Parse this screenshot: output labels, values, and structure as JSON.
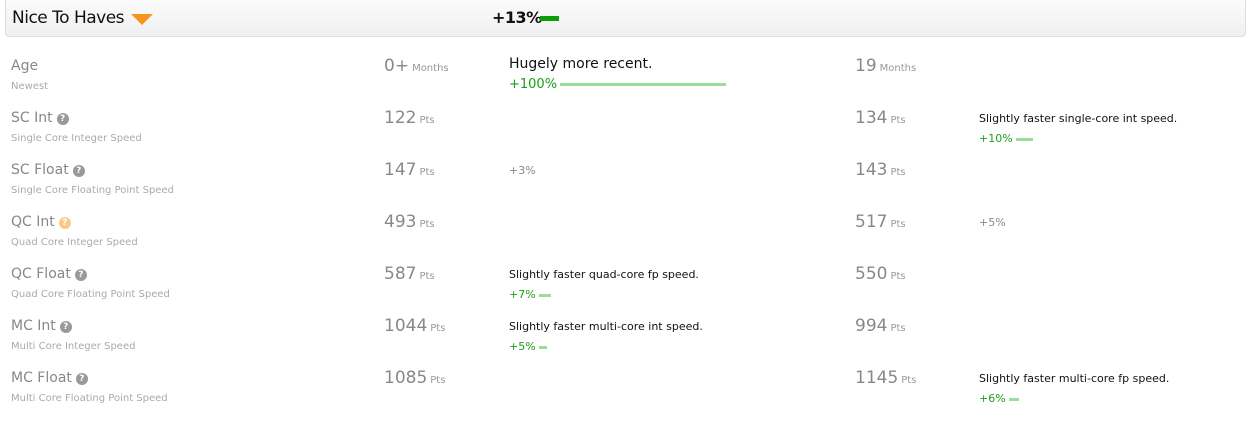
{
  "header": {
    "title": "Nice To Haves",
    "icon": "triangle-down-icon",
    "percent": "+13%",
    "accent": "#f7941d",
    "bar_color": "#0a9e0a"
  },
  "rows": [
    {
      "label": "Age",
      "sub": "Newest",
      "help": false,
      "left": {
        "value": "0+",
        "unit": "Months"
      },
      "right": {
        "value": "19",
        "unit": "Months"
      },
      "comment_side": "left",
      "comment": "Hugely more recent.",
      "delta": "+100%",
      "delta_fraction": 1.0
    },
    {
      "label": "SC Int",
      "sub": "Single Core Integer Speed",
      "help": true,
      "left": {
        "value": "122",
        "unit": "Pts"
      },
      "right": {
        "value": "134",
        "unit": "Pts"
      },
      "comment_side": "right",
      "comment": "Slightly faster single-core int speed.",
      "delta": "+10%",
      "delta_fraction": 0.1
    },
    {
      "label": "SC Float",
      "sub": "Single Core Floating Point Speed",
      "help": true,
      "left": {
        "value": "147",
        "unit": "Pts"
      },
      "right": {
        "value": "143",
        "unit": "Pts"
      },
      "comment_side": "left",
      "comment": "",
      "delta": "+3%",
      "delta_fraction": 0
    },
    {
      "label": "QC Int",
      "sub": "Quad Core Integer Speed",
      "help": true,
      "help_highlight": true,
      "left": {
        "value": "493",
        "unit": "Pts"
      },
      "right": {
        "value": "517",
        "unit": "Pts"
      },
      "comment_side": "right",
      "comment": "",
      "delta": "+5%",
      "delta_fraction": 0
    },
    {
      "label": "QC Float",
      "sub": "Quad Core Floating Point Speed",
      "help": true,
      "left": {
        "value": "587",
        "unit": "Pts"
      },
      "right": {
        "value": "550",
        "unit": "Pts"
      },
      "comment_side": "left",
      "comment": "Slightly faster quad-core fp speed.",
      "delta": "+7%",
      "delta_fraction": 0.07
    },
    {
      "label": "MC Int",
      "sub": "Multi Core Integer Speed",
      "help": true,
      "left": {
        "value": "1044",
        "unit": "Pts"
      },
      "right": {
        "value": "994",
        "unit": "Pts"
      },
      "comment_side": "left",
      "comment": "Slightly faster multi-core int speed.",
      "delta": "+5%",
      "delta_fraction": 0.05
    },
    {
      "label": "MC Float",
      "sub": "Multi Core Floating Point Speed",
      "help": true,
      "left": {
        "value": "1085",
        "unit": "Pts"
      },
      "right": {
        "value": "1145",
        "unit": "Pts"
      },
      "comment_side": "right",
      "comment": "Slightly faster multi-core fp speed.",
      "delta": "+6%",
      "delta_fraction": 0.06
    }
  ]
}
